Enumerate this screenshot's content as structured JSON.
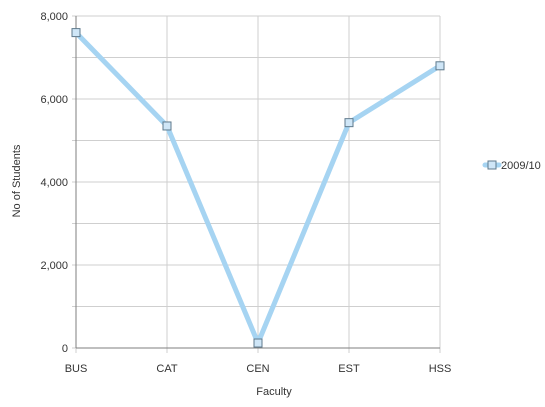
{
  "chart_data": {
    "type": "line",
    "title": "",
    "xlabel": "Faculty",
    "ylabel": "No of Students",
    "categories": [
      "BUS",
      "CAT",
      "CEN",
      "EST",
      "HSS"
    ],
    "series": [
      {
        "name": "2009/10",
        "values": [
          7600,
          5350,
          120,
          5430,
          6800
        ]
      }
    ],
    "ylim": [
      0,
      8000
    ],
    "yticks": [
      0,
      2000,
      4000,
      6000,
      8000
    ],
    "ytick_labels": [
      "0",
      "2,000",
      "4,000",
      "6,000",
      "8,000"
    ],
    "grid": true,
    "legend_position": "right",
    "colors": {
      "series_line": "#a6d4f2",
      "marker_fill": "#cfe6f7",
      "marker_stroke": "#5f7a8c",
      "grid": "#cfcfcf",
      "axis": "#7f7f7f",
      "text": "#333333"
    }
  }
}
